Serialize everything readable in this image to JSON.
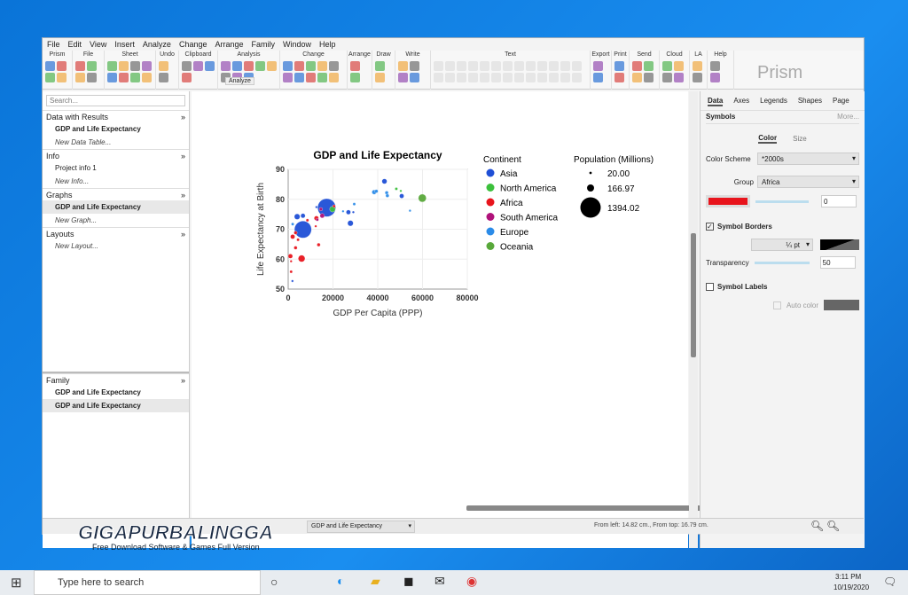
{
  "menu": [
    "File",
    "Edit",
    "View",
    "Insert",
    "Analyze",
    "Change",
    "Arrange",
    "Family",
    "Window",
    "Help"
  ],
  "ribbon_groups": [
    {
      "label": "Prism",
      "w": 34
    },
    {
      "label": "File",
      "w": 36
    },
    {
      "label": "Sheet",
      "w": 58
    },
    {
      "label": "Undo",
      "w": 26
    },
    {
      "label": "Clipboard",
      "w": 44
    },
    {
      "label": "Analysis",
      "w": 70
    },
    {
      "label": "Change",
      "w": 76
    },
    {
      "label": "Arrange",
      "w": 28
    },
    {
      "label": "Draw",
      "w": 26
    },
    {
      "label": "Write",
      "w": 40
    },
    {
      "label": "Text",
      "w": 180
    },
    {
      "label": "Export",
      "w": 24
    },
    {
      "label": "Print",
      "w": 20
    },
    {
      "label": "Send",
      "w": 34
    },
    {
      "label": "Cloud",
      "w": 34
    },
    {
      "label": "LA",
      "w": 20
    },
    {
      "label": "Help",
      "w": 30
    }
  ],
  "ribbon_analyze_label": "Analyze",
  "brand": "Prism",
  "navigator": {
    "search_placeholder": "Search...",
    "sections": [
      {
        "title": "Data with Results",
        "items": [
          {
            "label": "GDP and Life Expectancy",
            "style": "b"
          },
          {
            "label": "New Data Table...",
            "style": "i"
          }
        ]
      },
      {
        "title": "Info",
        "items": [
          {
            "label": "Project info 1",
            "style": ""
          },
          {
            "label": "New Info...",
            "style": "i"
          }
        ]
      },
      {
        "title": "Graphs",
        "items": [
          {
            "label": "GDP and Life Expectancy",
            "style": "b sel"
          },
          {
            "label": "New Graph...",
            "style": "i"
          }
        ]
      },
      {
        "title": "Layouts",
        "items": [
          {
            "label": "New Layout...",
            "style": "i"
          }
        ]
      }
    ],
    "family": {
      "title": "Family",
      "items": [
        {
          "label": "GDP and Life Expectancy",
          "style": "b"
        },
        {
          "label": "GDP and Life Expectancy",
          "style": "b sel"
        }
      ]
    }
  },
  "chart_data": {
    "type": "scatter",
    "title": "GDP and Life Expectancy",
    "xlabel": "GDP Per Capita  (PPP)",
    "ylabel": "Life Expectancy at Birth",
    "xlim": [
      0,
      80000
    ],
    "ylim": [
      50,
      90
    ],
    "xticks": [
      "0",
      "20000",
      "40000",
      "60000",
      "80000"
    ],
    "yticks": [
      "50",
      "60",
      "70",
      "80",
      "90"
    ],
    "grid": true,
    "legend": {
      "title": "Continent",
      "placement": "right",
      "entries": [
        {
          "name": "Asia",
          "color": "#1f4fd6"
        },
        {
          "name": "North America",
          "color": "#3cc03c"
        },
        {
          "name": "Africa",
          "color": "#e8141c"
        },
        {
          "name": "South America",
          "color": "#b0127a"
        },
        {
          "name": "Europe",
          "color": "#2b8be8"
        },
        {
          "name": "Oceania",
          "color": "#58a83a"
        }
      ]
    },
    "size_legend": {
      "title": "Population (Millions)",
      "entries": [
        {
          "label": "20.00",
          "value": 20
        },
        {
          "label": "166.97",
          "value": 166.97
        },
        {
          "label": "1394.02",
          "value": 1394.02
        }
      ]
    },
    "points": [
      {
        "c": "Asia",
        "x": 6600,
        "y": 69.9,
        "p": 968
      },
      {
        "c": "Asia",
        "x": 17200,
        "y": 77.2,
        "p": 1100
      },
      {
        "c": "Asia",
        "x": 43000,
        "y": 86,
        "p": 87
      },
      {
        "c": "Europe",
        "x": 38400,
        "y": 82.4,
        "p": 69
      },
      {
        "c": "Europe",
        "x": 39400,
        "y": 82.7,
        "p": 39
      },
      {
        "c": "Europe",
        "x": 44000,
        "y": 82.2,
        "p": 39
      },
      {
        "c": "Europe",
        "x": 44300,
        "y": 81.2,
        "p": 39
      },
      {
        "c": "Asia",
        "x": 50700,
        "y": 81.1,
        "p": 69
      },
      {
        "c": "Europe",
        "x": 54400,
        "y": 76.2,
        "p": 17
      },
      {
        "c": "Asia",
        "x": 27800,
        "y": 72,
        "p": 108
      },
      {
        "c": "Asia",
        "x": 26900,
        "y": 75.7,
        "p": 69
      },
      {
        "c": "Asia",
        "x": 29100,
        "y": 75.7,
        "p": 17
      },
      {
        "c": "Europe",
        "x": 29500,
        "y": 78.4,
        "p": 27
      },
      {
        "c": "Europe",
        "x": 24500,
        "y": 76,
        "p": 10
      },
      {
        "c": "Asia",
        "x": 4000,
        "y": 74.2,
        "p": 108
      },
      {
        "c": "Asia",
        "x": 6600,
        "y": 74.5,
        "p": 69
      },
      {
        "c": "Europe",
        "x": 2000,
        "y": 71.7,
        "p": 27
      },
      {
        "c": "Asia",
        "x": 1900,
        "y": 52.7,
        "p": 17
      },
      {
        "c": "Asia",
        "x": 12600,
        "y": 77.4,
        "p": 17
      },
      {
        "c": "Oceania",
        "x": 59900,
        "y": 80.4,
        "p": 211
      },
      {
        "c": "North America",
        "x": 48300,
        "y": 83.5,
        "p": 27
      },
      {
        "c": "North America",
        "x": 50300,
        "y": 82.8,
        "p": 17
      },
      {
        "c": "North America",
        "x": 19800,
        "y": 76.7,
        "p": 108
      },
      {
        "c": "Africa",
        "x": 6000,
        "y": 60.2,
        "p": 155
      },
      {
        "c": "Africa",
        "x": 1000,
        "y": 61,
        "p": 69
      },
      {
        "c": "Africa",
        "x": 3300,
        "y": 63.8,
        "p": 39
      },
      {
        "c": "Africa",
        "x": 13600,
        "y": 64.8,
        "p": 39
      },
      {
        "c": "Africa",
        "x": 1300,
        "y": 55.8,
        "p": 27
      },
      {
        "c": "Africa",
        "x": 1300,
        "y": 59.3,
        "p": 17
      },
      {
        "c": "Africa",
        "x": 2000,
        "y": 67.5,
        "p": 69
      },
      {
        "c": "Africa",
        "x": 3300,
        "y": 68.8,
        "p": 39
      },
      {
        "c": "Africa",
        "x": 4400,
        "y": 66.5,
        "p": 27
      },
      {
        "c": "Africa",
        "x": 8600,
        "y": 73,
        "p": 27
      },
      {
        "c": "Africa",
        "x": 12600,
        "y": 73.7,
        "p": 69
      },
      {
        "c": "Africa",
        "x": 12300,
        "y": 71,
        "p": 17
      },
      {
        "c": "Africa",
        "x": 20500,
        "y": 77.7,
        "p": 27
      },
      {
        "c": "South America",
        "x": 15200,
        "y": 74.5,
        "p": 69
      },
      {
        "c": "South America",
        "x": 14600,
        "y": 76.7,
        "p": 39
      },
      {
        "c": "South America",
        "x": 13000,
        "y": 73.2,
        "p": 27
      }
    ]
  },
  "sheet": {
    "tabs": [
      "Data",
      "Axes",
      "Legends",
      "Shapes",
      "Page"
    ],
    "section": "Symbols",
    "more": "More...",
    "subtabs": [
      "Color",
      "Size"
    ],
    "color_scheme_label": "Color Scheme",
    "color_scheme": "*2000s",
    "group_label": "Group",
    "group": "Africa",
    "group_color": "#e8141c",
    "color_value": "0",
    "symbol_borders": "Symbol Borders",
    "border_width": "¼ pt",
    "transparency_label": "Transparency",
    "transparency": "50",
    "symbol_labels": "Symbol Labels",
    "auto_color": "Auto color"
  },
  "status": {
    "sheet_select": "GDP and Life Expectancy",
    "position": "From left: 14.82 cm., From top: 16.79 cm."
  },
  "watermark": {
    "name": "GIGAPURBALINGGA",
    "tagline": "Free Download Software & Games Full Version"
  },
  "taskbar": {
    "search": "Type here to search",
    "time": "3:11 PM",
    "date": "10/19/2020"
  }
}
